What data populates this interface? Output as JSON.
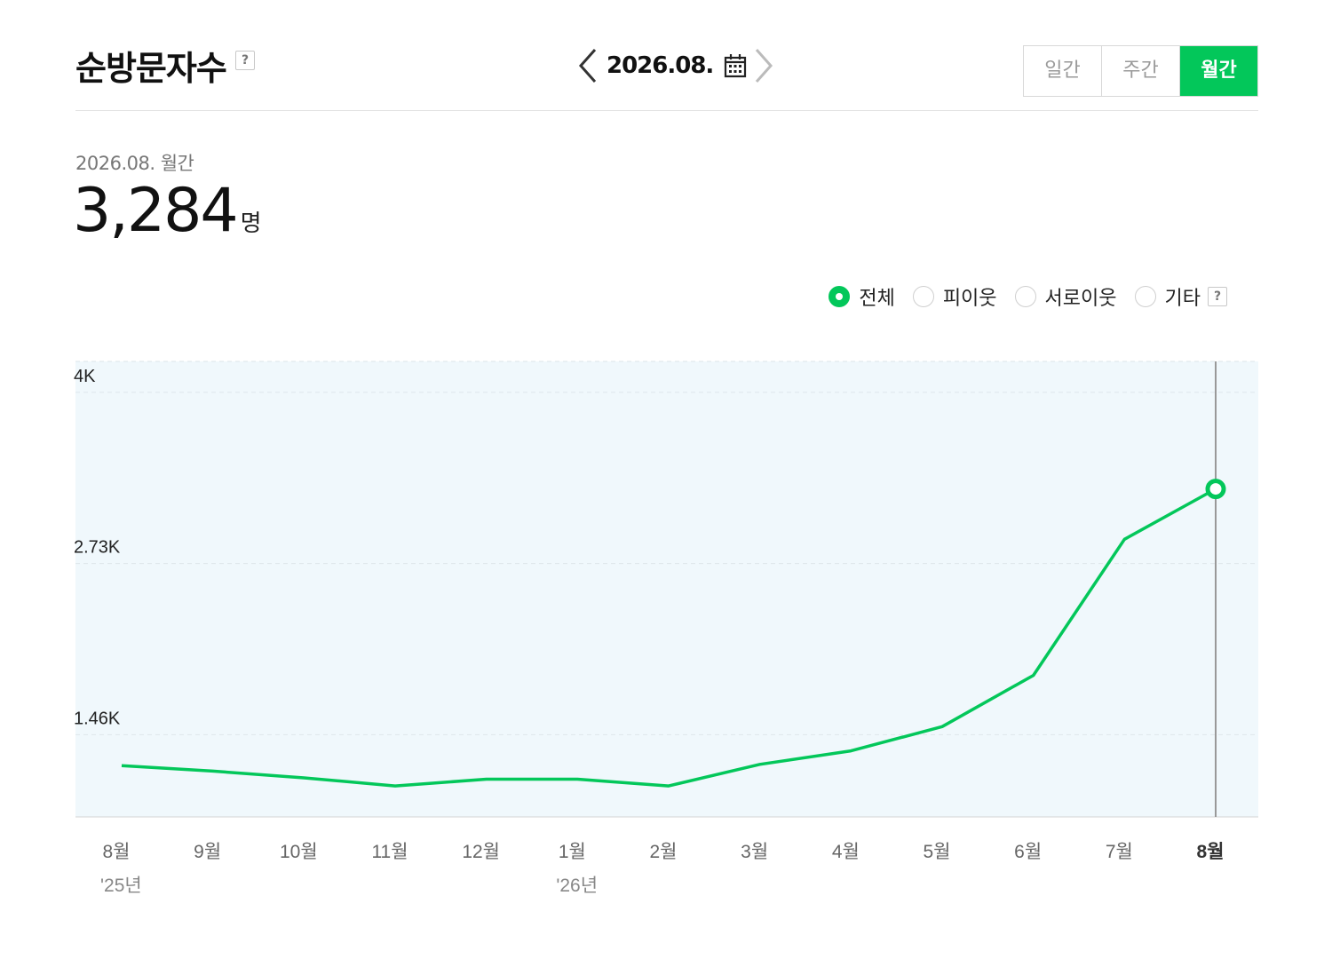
{
  "header": {
    "title": "순방문자수",
    "help_label": "?",
    "date_label": "2026.08."
  },
  "period_tabs": [
    {
      "label": "일간",
      "active": false
    },
    {
      "label": "주간",
      "active": false
    },
    {
      "label": "월간",
      "active": true
    }
  ],
  "summary": {
    "label": "2026.08. 월간",
    "value": "3,284",
    "unit": "명"
  },
  "filters": [
    {
      "label": "전체",
      "checked": true
    },
    {
      "label": "피이웃",
      "checked": false
    },
    {
      "label": "서로이웃",
      "checked": false
    },
    {
      "label": "기타",
      "checked": false
    }
  ],
  "colors": {
    "accent": "#03c75a",
    "plot_background": "#f0f8fc",
    "grid": "#dde5ea"
  },
  "icons": {
    "prev": "chevron-left-icon",
    "next": "chevron-right-icon",
    "calendar": "calendar-icon",
    "help": "help-icon"
  },
  "chart_data": {
    "type": "line",
    "categories": [
      "8월",
      "9월",
      "10월",
      "11월",
      "12월",
      "1월",
      "2월",
      "3월",
      "4월",
      "5월",
      "6월",
      "7월",
      "8월"
    ],
    "category_sublabels": [
      "'25년",
      "",
      "",
      "",
      "",
      "'26년",
      "",
      "",
      "",
      "",
      "",
      "",
      ""
    ],
    "current_index": 12,
    "y_ticks": [
      {
        "value": 1460,
        "label": "1.46K"
      },
      {
        "value": 2730,
        "label": "2.73K"
      },
      {
        "value": 4000,
        "label": "4K"
      }
    ],
    "ylim": [
      850,
      4230
    ],
    "series": [
      {
        "values": [
          1230,
          1190,
          1140,
          1080,
          1130,
          1130,
          1080,
          1240,
          1340,
          1520,
          1900,
          2910,
          3284
        ]
      }
    ]
  }
}
